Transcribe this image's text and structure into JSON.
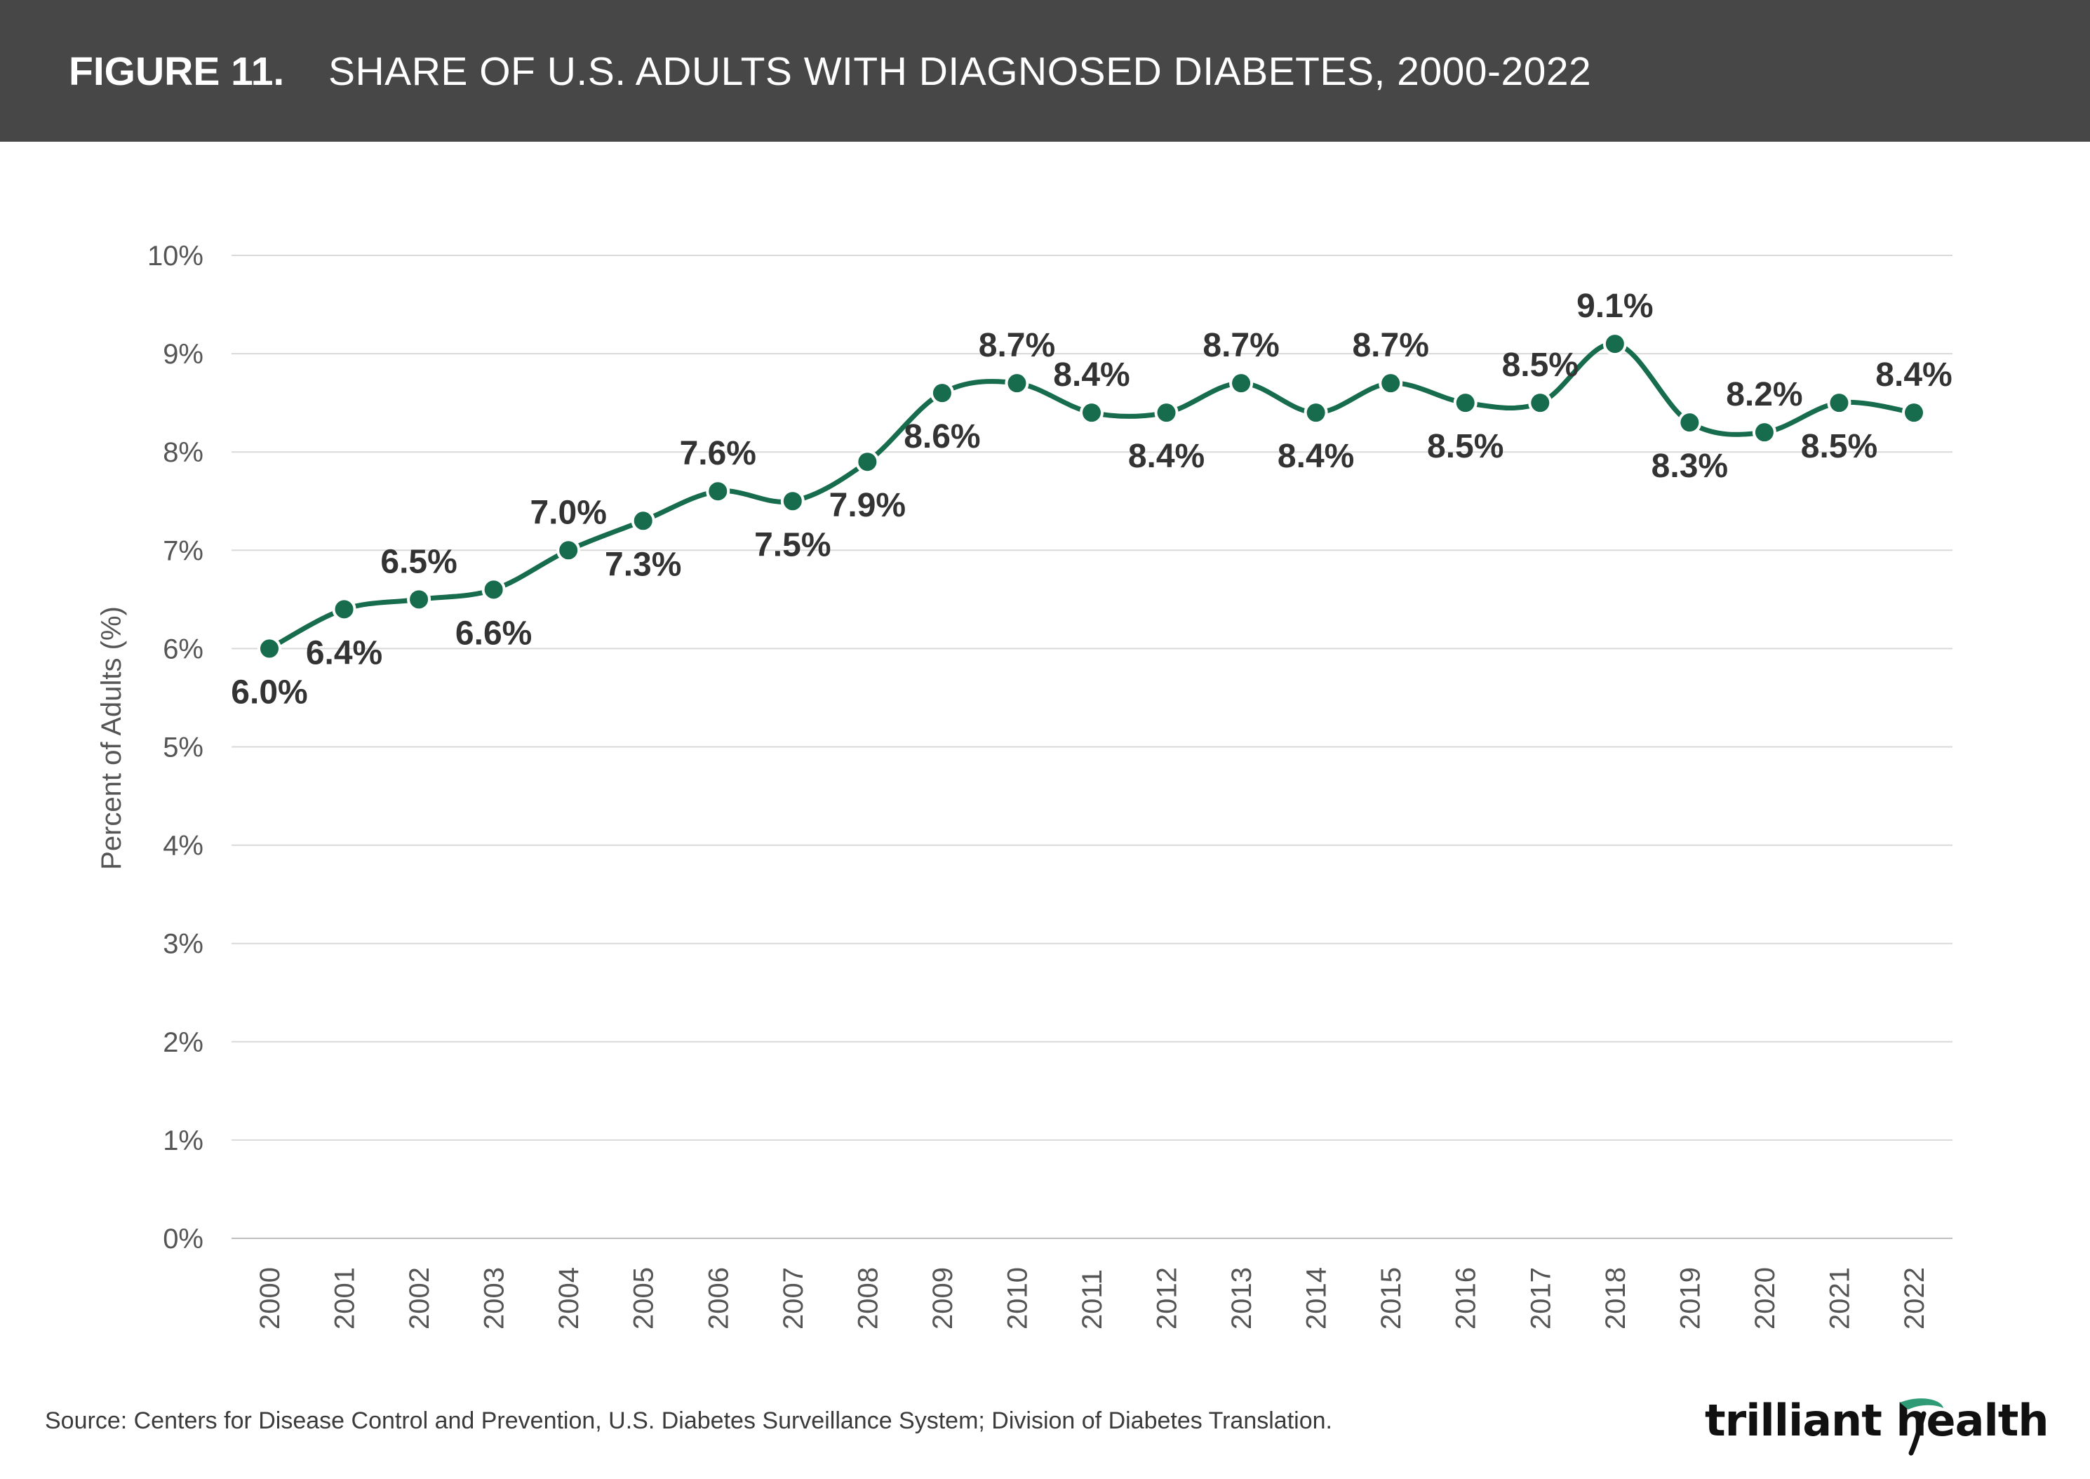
{
  "header": {
    "figure_label": "FIGURE 11.",
    "title": "SHARE OF U.S. ADULTS WITH DIAGNOSED DIABETES, 2000-2022"
  },
  "source": "Source: Centers for Disease Control and Prevention, U.S. Diabetes Surveillance System; Division of Diabetes Translation.",
  "logo": {
    "text": "trilliant health",
    "icon": "trilliant-swoosh-icon"
  },
  "colors": {
    "header_bg": "#474747",
    "line": "#166c4c",
    "grid": "#d9d9d9",
    "label": "#333333",
    "axis_text": "#555555",
    "logo_accent": "#2e9a76"
  },
  "chart_data": {
    "type": "line",
    "title": "SHARE OF U.S. ADULTS WITH DIAGNOSED DIABETES, 2000-2022",
    "xlabel": "",
    "ylabel": "Percent of Adults (%)",
    "ylim": [
      0,
      10
    ],
    "yticks": [
      "0%",
      "1%",
      "2%",
      "3%",
      "4%",
      "5%",
      "6%",
      "7%",
      "8%",
      "9%",
      "10%"
    ],
    "grid": true,
    "smooth": true,
    "categories": [
      "2000",
      "2001",
      "2002",
      "2003",
      "2004",
      "2005",
      "2006",
      "2007",
      "2008",
      "2009",
      "2010",
      "2011",
      "2012",
      "2013",
      "2014",
      "2015",
      "2016",
      "2017",
      "2018",
      "2019",
      "2020",
      "2021",
      "2022"
    ],
    "values": [
      6.0,
      6.4,
      6.5,
      6.6,
      7.0,
      7.3,
      7.6,
      7.5,
      7.9,
      8.6,
      8.7,
      8.4,
      8.4,
      8.7,
      8.4,
      8.7,
      8.5,
      8.5,
      9.1,
      8.3,
      8.2,
      8.5,
      8.4
    ],
    "data_labels": [
      "6.0%",
      "6.4%",
      "6.5%",
      "6.6%",
      "7.0%",
      "7.3%",
      "7.6%",
      "7.5%",
      "7.9%",
      "8.6%",
      "8.7%",
      "8.4%",
      "8.4%",
      "8.7%",
      "8.4%",
      "8.7%",
      "8.5%",
      "8.5%",
      "9.1%",
      "8.3%",
      "8.2%",
      "8.5%",
      "8.4%"
    ],
    "label_positions": [
      "below",
      "below",
      "above",
      "below",
      "above",
      "below",
      "above",
      "below",
      "below",
      "below",
      "above",
      "above",
      "below",
      "above",
      "below",
      "above",
      "below",
      "above",
      "above",
      "below",
      "above",
      "below",
      "above"
    ]
  }
}
